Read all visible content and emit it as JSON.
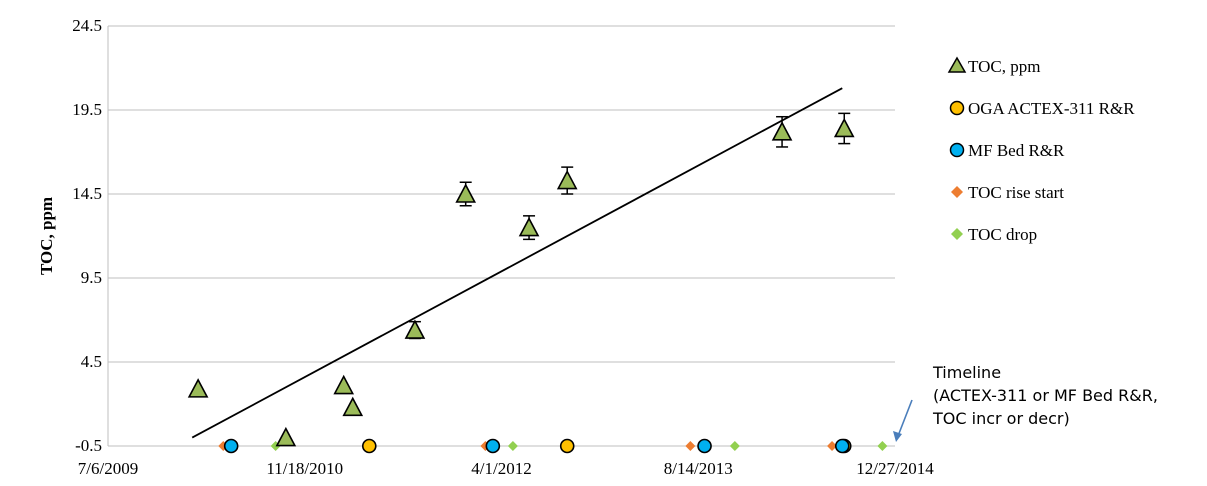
{
  "chart_data": {
    "type": "scatter",
    "ylabel": "TOC, ppm",
    "xlabel": "",
    "xlim": [
      "2009-07-06",
      "2014-12-27"
    ],
    "xticks": [
      "2009-07-06",
      "2010-11-18",
      "2012-04-01",
      "2013-08-14",
      "2014-12-27"
    ],
    "xtick_labels": [
      "7/6/2009",
      "11/18/2010",
      "4/1/2012",
      "8/14/2013",
      "12/27/2014"
    ],
    "ylim": [
      -0.5,
      24.5
    ],
    "yticks": [
      -0.5,
      4.5,
      9.5,
      14.5,
      19.5,
      24.5
    ],
    "ytick_labels": [
      "-0.5",
      "4.5",
      "9.5",
      "14.5",
      "19.5",
      "24.5"
    ],
    "grid": "horizontal",
    "legend_position": "right",
    "series": [
      {
        "name": "TOC, ppm",
        "marker": "triangle",
        "color": "#9bbb59",
        "error_bars": true,
        "points": [
          {
            "x": "2010-02-20",
            "y": 2.9
          },
          {
            "x": "2010-10-01",
            "y": 0.0
          },
          {
            "x": "2011-02-25",
            "y": 3.1
          },
          {
            "x": "2011-03-20",
            "y": 1.8
          },
          {
            "x": "2011-08-25",
            "y": 6.4,
            "err": 0.5
          },
          {
            "x": "2012-01-01",
            "y": 14.5,
            "err": 0.7
          },
          {
            "x": "2012-06-10",
            "y": 12.5,
            "err": 0.7
          },
          {
            "x": "2012-09-15",
            "y": 15.3,
            "err": 0.8
          },
          {
            "x": "2014-03-15",
            "y": 18.2,
            "err": 0.9
          },
          {
            "x": "2014-08-20",
            "y": 18.4,
            "err": 0.9
          }
        ]
      },
      {
        "name": "OGA ACTEX-311 R&R",
        "marker": "circle",
        "color": "#ffc000",
        "points": [
          {
            "x": "2011-05-01",
            "y": -0.5
          },
          {
            "x": "2012-09-15",
            "y": -0.5
          },
          {
            "x": "2014-08-20",
            "y": -0.5
          }
        ]
      },
      {
        "name": "MF Bed R&R",
        "marker": "circle",
        "color": "#00b0f0",
        "points": [
          {
            "x": "2010-05-15",
            "y": -0.5
          },
          {
            "x": "2012-03-10",
            "y": -0.5
          },
          {
            "x": "2013-08-30",
            "y": -0.5
          },
          {
            "x": "2014-08-15",
            "y": -0.5
          }
        ]
      },
      {
        "name": "TOC rise start",
        "marker": "diamond",
        "color": "#ed7d31",
        "points": [
          {
            "x": "2010-04-25",
            "y": -0.5
          },
          {
            "x": "2012-02-20",
            "y": -0.5
          },
          {
            "x": "2013-07-25",
            "y": -0.5
          },
          {
            "x": "2014-07-20",
            "y": -0.5
          }
        ]
      },
      {
        "name": "TOC drop",
        "marker": "diamond",
        "color": "#92d050",
        "points": [
          {
            "x": "2010-09-05",
            "y": -0.5
          },
          {
            "x": "2012-04-30",
            "y": -0.5
          },
          {
            "x": "2013-11-15",
            "y": -0.5
          },
          {
            "x": "2014-11-25",
            "y": -0.5
          }
        ]
      }
    ],
    "trendline": {
      "from": {
        "x": "2010-02-05",
        "y": 0.0
      },
      "to": {
        "x": "2014-08-15",
        "y": 20.8
      }
    },
    "annotation": {
      "lines": [
        "Timeline",
        "(ACTEX-311 or MF Bed R&R,",
        "TOC incr or decr)"
      ]
    }
  }
}
